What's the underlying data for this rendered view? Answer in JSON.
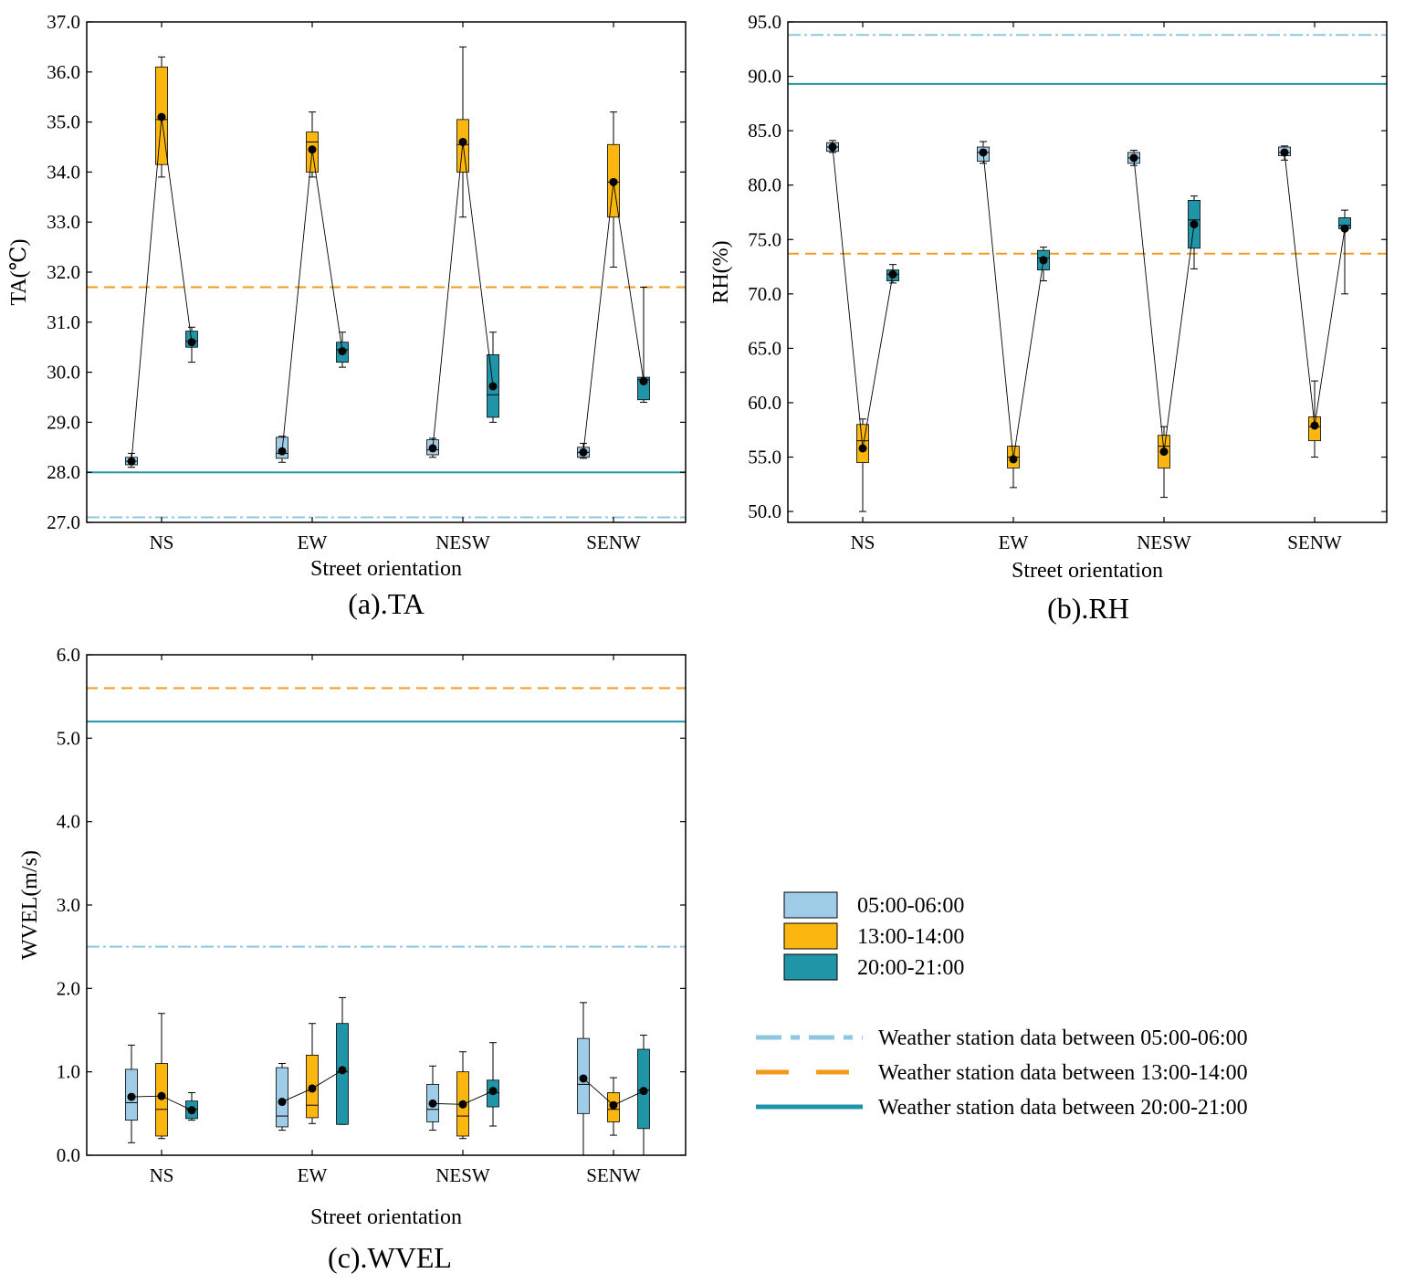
{
  "colors": {
    "early": "#9fcde8",
    "midday": "#fbb70f",
    "evening": "#2095a8",
    "ref_early": "#8ec7e0",
    "ref_midday": "#f39a1e",
    "ref_evening": "#2095a8",
    "connector": "#000000"
  },
  "legend": {
    "periods": [
      {
        "label": "05:00-06:00",
        "color": "#9fcde8"
      },
      {
        "label": "13:00-14:00",
        "color": "#fbb70f"
      },
      {
        "label": "20:00-21:00",
        "color": "#2095a8"
      }
    ],
    "stations": [
      {
        "label": "Weather station data between 05:00-06:00",
        "style": "dashdot",
        "color": "#8ec7e0"
      },
      {
        "label": "Weather station data between 13:00-14:00",
        "style": "dashed",
        "color": "#f39a1e"
      },
      {
        "label": "Weather station data between 20:00-21:00",
        "style": "solid",
        "color": "#2095a8"
      }
    ]
  },
  "chart_data": [
    {
      "type": "box",
      "caption": "(a).TA",
      "xlabel": "Street orientation",
      "ylabel": "TA(℃)",
      "ylim": [
        27.0,
        37.0
      ],
      "yticks": [
        "27.0",
        "28.0",
        "29.0",
        "30.0",
        "31.0",
        "32.0",
        "33.0",
        "34.0",
        "35.0",
        "36.0",
        "37.0"
      ],
      "categories": [
        "NS",
        "EW",
        "NESW",
        "SENW"
      ],
      "reference_lines": {
        "early": 27.1,
        "midday": 31.7,
        "evening": 28.0
      },
      "series": [
        {
          "name": "05:00-06:00",
          "boxes": [
            {
              "min": 28.1,
              "q1": 28.15,
              "median": 28.22,
              "q3": 28.3,
              "max": 28.38,
              "mean": 28.22
            },
            {
              "min": 28.2,
              "q1": 28.28,
              "median": 28.38,
              "q3": 28.7,
              "max": 28.72,
              "mean": 28.42
            },
            {
              "min": 28.3,
              "q1": 28.35,
              "median": 28.45,
              "q3": 28.65,
              "max": 28.68,
              "mean": 28.48
            },
            {
              "min": 28.28,
              "q1": 28.3,
              "median": 28.4,
              "q3": 28.5,
              "max": 28.58,
              "mean": 28.4
            }
          ]
        },
        {
          "name": "13:00-14:00",
          "boxes": [
            {
              "min": 33.9,
              "q1": 34.15,
              "median": 35.05,
              "q3": 36.1,
              "max": 36.3,
              "mean": 35.1
            },
            {
              "min": 33.9,
              "q1": 34.0,
              "median": 34.6,
              "q3": 34.8,
              "max": 35.2,
              "mean": 34.45
            },
            {
              "min": 33.1,
              "q1": 34.0,
              "median": 34.55,
              "q3": 35.05,
              "max": 36.5,
              "mean": 34.6
            },
            {
              "min": 32.1,
              "q1": 33.1,
              "median": 33.8,
              "q3": 34.55,
              "max": 35.2,
              "mean": 33.8
            }
          ]
        },
        {
          "name": "20:00-21:00",
          "boxes": [
            {
              "min": 30.2,
              "q1": 30.5,
              "median": 30.62,
              "q3": 30.82,
              "max": 30.9,
              "mean": 30.6
            },
            {
              "min": 30.1,
              "q1": 30.2,
              "median": 30.45,
              "q3": 30.6,
              "max": 30.8,
              "mean": 30.42
            },
            {
              "min": 29.0,
              "q1": 29.1,
              "median": 29.55,
              "q3": 30.35,
              "max": 30.8,
              "mean": 29.72
            },
            {
              "min": 29.4,
              "q1": 29.45,
              "median": 29.85,
              "q3": 29.9,
              "max": 31.7,
              "mean": 29.82
            }
          ]
        }
      ]
    },
    {
      "type": "box",
      "caption": "(b).RH",
      "xlabel": "Street orientation",
      "ylabel": "RH(%)",
      "ylim": [
        49.0,
        95.0
      ],
      "yticks": [
        "50.0",
        "55.0",
        "60.0",
        "65.0",
        "70.0",
        "75.0",
        "80.0",
        "85.0",
        "90.0",
        "95.0"
      ],
      "categories": [
        "NS",
        "EW",
        "NESW",
        "SENW"
      ],
      "reference_lines": {
        "early": 93.8,
        "midday": 73.7,
        "evening": 89.3
      },
      "series": [
        {
          "name": "05:00-06:00",
          "boxes": [
            {
              "min": 83.0,
              "q1": 83.1,
              "median": 83.5,
              "q3": 83.9,
              "max": 84.1,
              "mean": 83.5
            },
            {
              "min": 82.0,
              "q1": 82.2,
              "median": 83.0,
              "q3": 83.5,
              "max": 84.0,
              "mean": 83.0
            },
            {
              "min": 81.8,
              "q1": 82.0,
              "median": 82.5,
              "q3": 83.0,
              "max": 83.2,
              "mean": 82.5
            },
            {
              "min": 82.3,
              "q1": 82.7,
              "median": 83.0,
              "q3": 83.5,
              "max": 83.6,
              "mean": 83.0
            }
          ]
        },
        {
          "name": "13:00-14:00",
          "boxes": [
            {
              "min": 50.0,
              "q1": 54.5,
              "median": 56.5,
              "q3": 58.0,
              "max": 58.5,
              "mean": 55.8
            },
            {
              "min": 52.2,
              "q1": 54.0,
              "median": 55.0,
              "q3": 56.0,
              "max": 56.0,
              "mean": 54.8
            },
            {
              "min": 51.3,
              "q1": 54.0,
              "median": 56.0,
              "q3": 57.0,
              "max": 57.8,
              "mean": 55.5
            },
            {
              "min": 55.0,
              "q1": 56.5,
              "median": 57.8,
              "q3": 58.7,
              "max": 62.0,
              "mean": 57.9
            }
          ]
        },
        {
          "name": "20:00-21:00",
          "boxes": [
            {
              "min": 71.0,
              "q1": 71.2,
              "median": 71.8,
              "q3": 72.2,
              "max": 72.7,
              "mean": 71.8
            },
            {
              "min": 71.2,
              "q1": 72.2,
              "median": 73.3,
              "q3": 74.0,
              "max": 74.3,
              "mean": 73.1
            },
            {
              "min": 72.3,
              "q1": 74.2,
              "median": 76.8,
              "q3": 78.6,
              "max": 79.0,
              "mean": 76.4
            },
            {
              "min": 70.0,
              "q1": 76.0,
              "median": 76.3,
              "q3": 77.0,
              "max": 77.7,
              "mean": 76.0
            }
          ]
        }
      ]
    },
    {
      "type": "box",
      "caption": "(c).WVEL",
      "xlabel": "Street orientation",
      "ylabel": "WVEL(m/s)",
      "ylim": [
        0.0,
        6.0
      ],
      "yticks": [
        "0.0",
        "1.0",
        "2.0",
        "3.0",
        "4.0",
        "5.0",
        "6.0"
      ],
      "categories": [
        "NS",
        "EW",
        "NESW",
        "SENW"
      ],
      "reference_lines": {
        "early": 2.5,
        "midday": 5.6,
        "evening": 5.2
      },
      "series": [
        {
          "name": "05:00-06:00",
          "boxes": [
            {
              "min": 0.15,
              "q1": 0.42,
              "median": 0.63,
              "q3": 1.03,
              "max": 1.32,
              "mean": 0.7
            },
            {
              "min": 0.3,
              "q1": 0.34,
              "median": 0.47,
              "q3": 1.05,
              "max": 1.1,
              "mean": 0.64
            },
            {
              "min": 0.3,
              "q1": 0.4,
              "median": 0.55,
              "q3": 0.85,
              "max": 1.07,
              "mean": 0.62
            },
            {
              "min": 0.0,
              "q1": 0.5,
              "median": 0.85,
              "q3": 1.4,
              "max": 1.83,
              "mean": 0.92
            }
          ]
        },
        {
          "name": "13:00-14:00",
          "boxes": [
            {
              "min": 0.2,
              "q1": 0.23,
              "median": 0.55,
              "q3": 1.1,
              "max": 1.7,
              "mean": 0.71
            },
            {
              "min": 0.38,
              "q1": 0.45,
              "median": 0.6,
              "q3": 1.2,
              "max": 1.58,
              "mean": 0.8
            },
            {
              "min": 0.2,
              "q1": 0.23,
              "median": 0.47,
              "q3": 1.0,
              "max": 1.24,
              "mean": 0.61
            },
            {
              "min": 0.24,
              "q1": 0.4,
              "median": 0.55,
              "q3": 0.75,
              "max": 0.93,
              "mean": 0.6
            }
          ]
        },
        {
          "name": "20:00-21:00",
          "boxes": [
            {
              "min": 0.42,
              "q1": 0.44,
              "median": 0.55,
              "q3": 0.65,
              "max": 0.75,
              "mean": 0.54
            },
            {
              "min": 0.37,
              "q1": 0.37,
              "median": 1.0,
              "q3": 1.58,
              "max": 1.89,
              "mean": 1.02
            },
            {
              "min": 0.35,
              "q1": 0.58,
              "median": 0.75,
              "q3": 0.9,
              "max": 1.35,
              "mean": 0.77
            },
            {
              "min": 0.0,
              "q1": 0.32,
              "median": 0.78,
              "q3": 1.27,
              "max": 1.44,
              "mean": 0.77
            }
          ]
        }
      ]
    }
  ]
}
